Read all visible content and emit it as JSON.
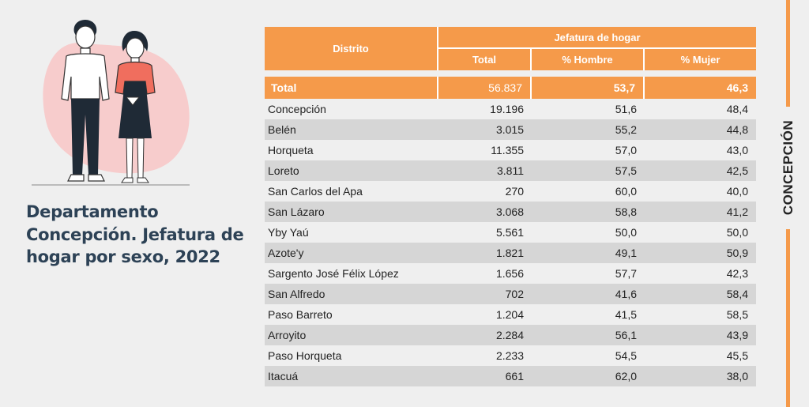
{
  "title": "Departamento Concepción. Jefatura de hogar por sexo, 2022",
  "side_label": "CONCEPCIÓN",
  "illustration_icon": "couple-illustration-icon",
  "colors": {
    "accent": "#f59a4a",
    "title": "#2d4256",
    "stripe": "#d6d6d6"
  },
  "table": {
    "header": {
      "distrito": "Distrito",
      "group": "Jefatura de hogar",
      "total": "Total",
      "hombre": "% Hombre",
      "mujer": "% Mujer"
    },
    "total_row": {
      "name": "Total",
      "total": "56.837",
      "hombre": "53,7",
      "mujer": "46,3"
    },
    "rows": [
      {
        "name": "Concepción",
        "total": "19.196",
        "hombre": "51,6",
        "mujer": "48,4"
      },
      {
        "name": "Belén",
        "total": "3.015",
        "hombre": "55,2",
        "mujer": "44,8"
      },
      {
        "name": "Horqueta",
        "total": "11.355",
        "hombre": "57,0",
        "mujer": "43,0"
      },
      {
        "name": "Loreto",
        "total": "3.811",
        "hombre": "57,5",
        "mujer": "42,5"
      },
      {
        "name": "San Carlos del Apa",
        "total": "270",
        "hombre": "60,0",
        "mujer": "40,0"
      },
      {
        "name": "San Lázaro",
        "total": "3.068",
        "hombre": "58,8",
        "mujer": "41,2"
      },
      {
        "name": "Yby Yaú",
        "total": "5.561",
        "hombre": "50,0",
        "mujer": "50,0"
      },
      {
        "name": "Azote'y",
        "total": "1.821",
        "hombre": "49,1",
        "mujer": "50,9"
      },
      {
        "name": "Sargento José Félix López",
        "total": "1.656",
        "hombre": "57,7",
        "mujer": "42,3"
      },
      {
        "name": "San Alfredo",
        "total": "702",
        "hombre": "41,6",
        "mujer": "58,4"
      },
      {
        "name": "Paso Barreto",
        "total": "1.204",
        "hombre": "41,5",
        "mujer": "58,5"
      },
      {
        "name": "Arroyito",
        "total": "2.284",
        "hombre": "56,1",
        "mujer": "43,9"
      },
      {
        "name": "Paso Horqueta",
        "total": "2.233",
        "hombre": "54,5",
        "mujer": "45,5"
      },
      {
        "name": "Itacuá",
        "total": "661",
        "hombre": "62,0",
        "mujer": "38,0"
      }
    ]
  }
}
